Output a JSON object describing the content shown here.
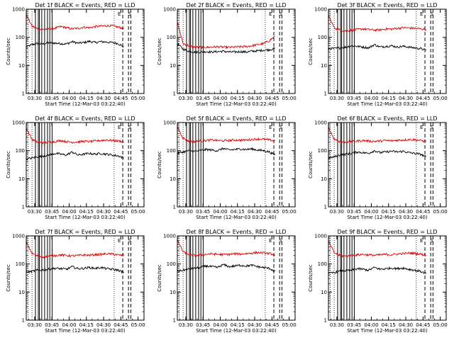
{
  "figure": {
    "time_ticks": [
      "03:30",
      "03:45",
      "04:00",
      "04:15",
      "04:30",
      "04:45",
      "05:00"
    ],
    "xlabel": "Start Time (12-Mar-03 03:22:40)",
    "ylabel": "Counts/sec",
    "y_ticks": [
      "1",
      "10",
      "100",
      "1000"
    ],
    "legend_colors": {
      "events": "#000000",
      "lld": "#e00000"
    }
  },
  "chart_data": [
    {
      "title": "Det 1f BLACK = Events, RED = LLD",
      "type": "line",
      "xlim_min": [
        0,
        102.5
      ],
      "ylim": [
        1,
        1000
      ],
      "yscale": "log",
      "x_min": [
        0,
        5,
        10,
        15,
        20,
        25,
        30,
        35,
        40,
        45,
        50,
        55,
        60,
        65,
        70,
        75,
        80,
        85
      ],
      "series": [
        {
          "name": "Events",
          "color": "#000000",
          "values": [
            45,
            55,
            60,
            58,
            65,
            62,
            60,
            58,
            70,
            62,
            65,
            72,
            65,
            70,
            68,
            65,
            60,
            45
          ]
        },
        {
          "name": "LLD",
          "color": "#e00000",
          "values": [
            650,
            250,
            200,
            190,
            200,
            210,
            240,
            220,
            200,
            210,
            230,
            220,
            240,
            250,
            260,
            255,
            230,
            210
          ]
        }
      ],
      "vlines_solid_min": [
        8,
        10.5,
        11.5,
        13.5,
        16,
        18.5,
        20.5,
        22.5
      ],
      "vlines_dotted_min": [
        1.5,
        5,
        76.5
      ],
      "vlines_dashed_min": [
        84,
        89,
        91
      ],
      "markers": [
        {
          "text": "E",
          "x_min": 81
        },
        {
          "text": "S",
          "x_min": 90
        }
      ]
    },
    {
      "title": "Det 2f BLACK = Events, RED = LLD",
      "type": "line",
      "xlim_min": [
        0,
        102.5
      ],
      "ylim": [
        1,
        1000
      ],
      "yscale": "log",
      "x_min": [
        0,
        5,
        10,
        15,
        20,
        25,
        30,
        35,
        40,
        45,
        50,
        55,
        60,
        65,
        70,
        75,
        80,
        85
      ],
      "series": [
        {
          "name": "Events",
          "color": "#000000",
          "values": [
            60,
            38,
            32,
            30,
            30,
            31,
            30,
            31,
            32,
            30,
            30,
            31,
            30,
            32,
            33,
            35,
            36,
            40
          ]
        },
        {
          "name": "LLD",
          "color": "#e00000",
          "values": [
            350,
            60,
            50,
            45,
            45,
            44,
            45,
            46,
            45,
            44,
            45,
            46,
            47,
            50,
            55,
            60,
            75,
            110
          ]
        }
      ],
      "vlines_solid_min": [
        8,
        10.5,
        11.5,
        13.5,
        16,
        18.5,
        20.5,
        22.5
      ],
      "vlines_dotted_min": [
        1.5,
        5,
        76.5
      ],
      "vlines_dashed_min": [
        84,
        89,
        91
      ],
      "markers": [
        {
          "text": "E",
          "x_min": 81
        },
        {
          "text": "S",
          "x_min": 90
        }
      ]
    },
    {
      "title": "Det 3f BLACK = Events, RED = LLD",
      "type": "line",
      "xlim_min": [
        0,
        102.5
      ],
      "ylim": [
        1,
        1000
      ],
      "yscale": "log",
      "x_min": [
        0,
        5,
        10,
        15,
        20,
        25,
        30,
        35,
        40,
        45,
        50,
        55,
        60,
        65,
        70,
        75,
        80,
        85
      ],
      "series": [
        {
          "name": "Events",
          "color": "#000000",
          "values": [
            40,
            40,
            42,
            45,
            50,
            48,
            45,
            42,
            55,
            45,
            48,
            50,
            45,
            48,
            45,
            42,
            40,
            35
          ]
        },
        {
          "name": "LLD",
          "color": "#e00000",
          "values": [
            600,
            220,
            180,
            170,
            180,
            190,
            200,
            190,
            180,
            185,
            200,
            195,
            210,
            220,
            215,
            210,
            200,
            190
          ]
        }
      ],
      "vlines_solid_min": [
        8,
        10.5,
        11.5,
        13.5,
        16,
        18.5,
        20.5,
        22.5
      ],
      "vlines_dotted_min": [
        1.5,
        5,
        76.5
      ],
      "vlines_dashed_min": [
        84,
        89,
        91
      ],
      "markers": [
        {
          "text": "E",
          "x_min": 81
        },
        {
          "text": "S",
          "x_min": 90
        }
      ]
    },
    {
      "title": "Det 4f BLACK = Events, RED = LLD",
      "type": "line",
      "xlim_min": [
        0,
        102.5
      ],
      "ylim": [
        1,
        1000
      ],
      "yscale": "log",
      "x_min": [
        0,
        5,
        10,
        15,
        20,
        25,
        30,
        35,
        40,
        45,
        50,
        55,
        60,
        65,
        70,
        75,
        80,
        85
      ],
      "series": [
        {
          "name": "Events",
          "color": "#000000",
          "values": [
            50,
            55,
            60,
            65,
            70,
            80,
            75,
            70,
            90,
            70,
            75,
            80,
            75,
            80,
            75,
            70,
            65,
            55
          ]
        },
        {
          "name": "LLD",
          "color": "#e00000",
          "values": [
            650,
            250,
            200,
            190,
            200,
            210,
            230,
            210,
            200,
            205,
            215,
            210,
            220,
            230,
            240,
            230,
            220,
            210
          ]
        }
      ],
      "vlines_solid_min": [
        8,
        10.5,
        11.5,
        13.5,
        16,
        18.5,
        20.5,
        22.5
      ],
      "vlines_dotted_min": [
        1.5,
        5,
        76.5
      ],
      "vlines_dashed_min": [
        84,
        89,
        91
      ],
      "markers": [
        {
          "text": "E",
          "x_min": 81
        },
        {
          "text": "S",
          "x_min": 90
        }
      ]
    },
    {
      "title": "Det 5f BLACK = Events, RED = LLD",
      "type": "line",
      "xlim_min": [
        0,
        102.5
      ],
      "ylim": [
        1,
        1000
      ],
      "yscale": "log",
      "x_min": [
        0,
        5,
        10,
        15,
        20,
        25,
        30,
        35,
        40,
        45,
        50,
        55,
        60,
        65,
        70,
        75,
        80,
        85
      ],
      "series": [
        {
          "name": "Events",
          "color": "#000000",
          "values": [
            80,
            90,
            100,
            95,
            100,
            110,
            105,
            100,
            120,
            105,
            110,
            115,
            110,
            115,
            105,
            100,
            90,
            70
          ]
        },
        {
          "name": "LLD",
          "color": "#e00000",
          "values": [
            700,
            280,
            220,
            210,
            220,
            230,
            240,
            230,
            225,
            230,
            240,
            235,
            240,
            250,
            260,
            255,
            240,
            220
          ]
        }
      ],
      "vlines_solid_min": [
        8,
        10.5,
        11.5,
        13.5,
        16,
        18.5,
        20.5,
        22.5
      ],
      "vlines_dotted_min": [
        1.5,
        5,
        76.5
      ],
      "vlines_dashed_min": [
        84,
        89,
        91
      ],
      "markers": [
        {
          "text": "E",
          "x_min": 81
        },
        {
          "text": "S",
          "x_min": 90
        }
      ]
    },
    {
      "title": "Det 6f BLACK = Events, RED = LLD",
      "type": "line",
      "xlim_min": [
        0,
        102.5
      ],
      "ylim": [
        1,
        1000
      ],
      "yscale": "log",
      "x_min": [
        0,
        5,
        10,
        15,
        20,
        25,
        30,
        35,
        40,
        45,
        50,
        55,
        60,
        65,
        70,
        75,
        80,
        85
      ],
      "series": [
        {
          "name": "Events",
          "color": "#000000",
          "values": [
            55,
            60,
            70,
            75,
            80,
            90,
            85,
            80,
            100,
            85,
            90,
            95,
            90,
            95,
            85,
            80,
            75,
            60
          ]
        },
        {
          "name": "LLD",
          "color": "#e00000",
          "values": [
            650,
            260,
            210,
            200,
            210,
            220,
            230,
            220,
            215,
            220,
            230,
            225,
            235,
            240,
            250,
            245,
            230,
            210
          ]
        }
      ],
      "vlines_solid_min": [
        8,
        10.5,
        11.5,
        13.5,
        16,
        18.5,
        20.5,
        22.5
      ],
      "vlines_dotted_min": [
        1.5,
        5,
        76.5
      ],
      "vlines_dashed_min": [
        84,
        89,
        91
      ],
      "markers": [
        {
          "text": "E",
          "x_min": 81
        },
        {
          "text": "S",
          "x_min": 90
        }
      ]
    },
    {
      "title": "Det 7f BLACK = Events, RED = LLD",
      "type": "line",
      "xlim_min": [
        0,
        102.5
      ],
      "ylim": [
        1,
        1000
      ],
      "yscale": "log",
      "x_min": [
        0,
        5,
        10,
        15,
        20,
        25,
        30,
        35,
        40,
        45,
        50,
        55,
        60,
        65,
        70,
        75,
        80,
        85
      ],
      "series": [
        {
          "name": "Events",
          "color": "#000000",
          "values": [
            50,
            55,
            60,
            62,
            65,
            70,
            68,
            65,
            80,
            68,
            70,
            75,
            70,
            75,
            68,
            65,
            60,
            50
          ]
        },
        {
          "name": "LLD",
          "color": "#e00000",
          "values": [
            600,
            240,
            190,
            180,
            190,
            200,
            210,
            200,
            195,
            200,
            210,
            205,
            215,
            220,
            230,
            225,
            210,
            200
          ]
        }
      ],
      "vlines_solid_min": [
        8,
        10.5,
        11.5,
        13.5,
        16,
        18.5,
        20.5,
        22.5
      ],
      "vlines_dotted_min": [
        1.5,
        5,
        76.5
      ],
      "vlines_dashed_min": [
        84,
        89,
        91
      ],
      "markers": [
        {
          "text": "E",
          "x_min": 81
        },
        {
          "text": "S",
          "x_min": 90
        }
      ]
    },
    {
      "title": "Det 8f BLACK = Events, RED = LLD",
      "type": "line",
      "xlim_min": [
        0,
        102.5
      ],
      "ylim": [
        1,
        1000
      ],
      "yscale": "log",
      "x_min": [
        0,
        5,
        10,
        15,
        20,
        25,
        30,
        35,
        40,
        45,
        50,
        55,
        60,
        65,
        70,
        75,
        80,
        85
      ],
      "series": [
        {
          "name": "Events",
          "color": "#000000",
          "values": [
            55,
            60,
            65,
            70,
            75,
            85,
            80,
            75,
            95,
            80,
            85,
            90,
            85,
            90,
            80,
            75,
            70,
            55
          ]
        },
        {
          "name": "LLD",
          "color": "#e00000",
          "values": [
            700,
            270,
            220,
            200,
            210,
            220,
            230,
            220,
            215,
            220,
            230,
            225,
            235,
            245,
            255,
            250,
            235,
            215
          ]
        }
      ],
      "vlines_solid_min": [
        8,
        10.5,
        11.5,
        13.5,
        16,
        18.5,
        20.5,
        22.5
      ],
      "vlines_dotted_min": [
        1.5,
        5,
        76.5
      ],
      "vlines_dashed_min": [
        84,
        89,
        91
      ],
      "markers": [
        {
          "text": "E",
          "x_min": 81
        },
        {
          "text": "S",
          "x_min": 90
        }
      ]
    },
    {
      "title": "Det 9f BLACK = Events, RED = LLD",
      "type": "line",
      "xlim_min": [
        0,
        102.5
      ],
      "ylim": [
        1,
        1000
      ],
      "yscale": "log",
      "x_min": [
        0,
        5,
        10,
        15,
        20,
        25,
        30,
        35,
        40,
        45,
        50,
        55,
        60,
        65,
        70,
        75,
        80,
        85
      ],
      "series": [
        {
          "name": "Events",
          "color": "#000000",
          "values": [
            45,
            50,
            55,
            58,
            60,
            68,
            65,
            60,
            75,
            65,
            68,
            72,
            68,
            72,
            65,
            60,
            55,
            45
          ]
        },
        {
          "name": "LLD",
          "color": "#e00000",
          "values": [
            650,
            250,
            200,
            190,
            200,
            210,
            220,
            210,
            205,
            210,
            220,
            215,
            225,
            235,
            245,
            240,
            225,
            205
          ]
        }
      ],
      "vlines_solid_min": [
        8,
        10.5,
        11.5,
        13.5,
        16,
        18.5,
        20.5,
        22.5
      ],
      "vlines_dotted_min": [
        1.5,
        5,
        76.5
      ],
      "vlines_dashed_min": [
        84,
        89,
        91
      ],
      "markers": [
        {
          "text": "E",
          "x_min": 81
        },
        {
          "text": "S",
          "x_min": 90
        }
      ]
    }
  ]
}
